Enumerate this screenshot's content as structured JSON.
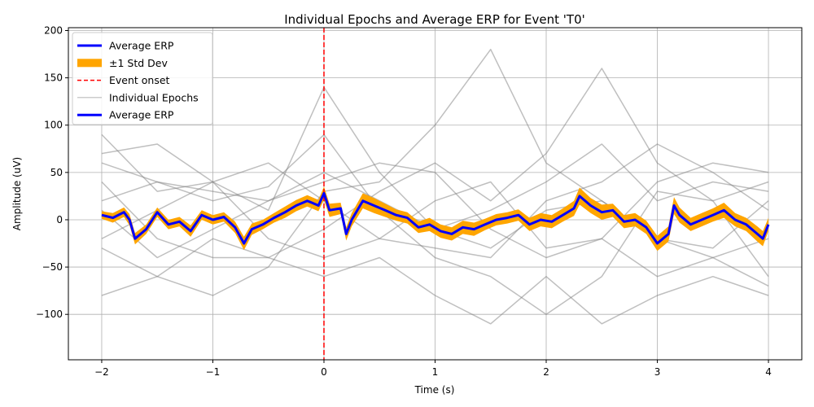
{
  "chart_data": {
    "type": "line",
    "title": "Individual Epochs and Average ERP for Event 'T0'",
    "xlabel": "Time (s)",
    "ylabel": "Amplitude (uV)",
    "xlim": [
      -2.3,
      4.3
    ],
    "ylim": [
      -148,
      203
    ],
    "xticks": [
      -2,
      -1,
      0,
      1,
      2,
      3,
      4
    ],
    "xtick_labels": [
      "−2",
      "−1",
      "0",
      "1",
      "2",
      "3",
      "4"
    ],
    "yticks": [
      -100,
      -50,
      0,
      50,
      100,
      150,
      200
    ],
    "ytick_labels": [
      "−100",
      "−50",
      "0",
      "50",
      "100",
      "150",
      "200"
    ],
    "grid": true,
    "legend_position": "top-left",
    "legend": [
      {
        "label": "Average ERP",
        "kind": "line",
        "color": "#0000ff"
      },
      {
        "label": "±1 Std Dev",
        "kind": "patch",
        "color": "#ffa500"
      },
      {
        "label": "Event onset",
        "kind": "dashed",
        "color": "#ff0000"
      },
      {
        "label": "Individual Epochs",
        "kind": "thin",
        "color": "#808080"
      },
      {
        "label": "Average ERP",
        "kind": "line",
        "color": "#0000ff"
      }
    ],
    "event_onset_x": 0,
    "epochs": {
      "color": "#808080",
      "x": [
        -2.0,
        -1.5,
        -1.0,
        -0.5,
        0.0,
        0.5,
        1.0,
        1.5,
        2.0,
        2.5,
        3.0,
        3.5,
        4.0
      ],
      "series": [
        {
          "values": [
            60,
            40,
            20,
            35,
            90,
            10,
            -40,
            -60,
            -100,
            -60,
            30,
            20,
            40
          ]
        },
        {
          "values": [
            -80,
            -60,
            -20,
            -40,
            -10,
            30,
            60,
            20,
            70,
            160,
            60,
            20,
            -60
          ]
        },
        {
          "values": [
            90,
            30,
            40,
            10,
            140,
            50,
            -10,
            -30,
            10,
            20,
            -20,
            -40,
            -20
          ]
        },
        {
          "values": [
            -30,
            -60,
            -80,
            -50,
            30,
            40,
            100,
            180,
            60,
            20,
            -20,
            -30,
            20
          ]
        },
        {
          "values": [
            20,
            40,
            30,
            20,
            40,
            60,
            50,
            -10,
            -40,
            -20,
            40,
            60,
            50
          ]
        },
        {
          "values": [
            40,
            -20,
            -40,
            -40,
            -60,
            -40,
            -80,
            -110,
            -60,
            -110,
            -80,
            -60,
            -80
          ]
        },
        {
          "values": [
            -20,
            10,
            40,
            60,
            20,
            -20,
            -30,
            -40,
            20,
            40,
            80,
            50,
            10
          ]
        },
        {
          "values": [
            10,
            -40,
            -10,
            20,
            50,
            20,
            -10,
            10,
            40,
            80,
            20,
            40,
            30
          ]
        },
        {
          "values": [
            70,
            80,
            40,
            -20,
            -40,
            -20,
            20,
            40,
            -30,
            -20,
            -60,
            -40,
            -70
          ]
        }
      ]
    },
    "average_erp": {
      "color": "#0000ff",
      "x": [
        -2.0,
        -1.9,
        -1.8,
        -1.75,
        -1.7,
        -1.6,
        -1.5,
        -1.4,
        -1.3,
        -1.2,
        -1.1,
        -1.0,
        -0.9,
        -0.8,
        -0.72,
        -0.65,
        -0.55,
        -0.45,
        -0.35,
        -0.25,
        -0.15,
        -0.05,
        0.0,
        0.05,
        0.15,
        0.2,
        0.25,
        0.35,
        0.45,
        0.55,
        0.65,
        0.75,
        0.85,
        0.95,
        1.05,
        1.15,
        1.25,
        1.35,
        1.45,
        1.55,
        1.65,
        1.75,
        1.85,
        1.95,
        2.05,
        2.15,
        2.25,
        2.3,
        2.4,
        2.5,
        2.6,
        2.7,
        2.8,
        2.9,
        3.0,
        3.05,
        3.1,
        3.15,
        3.2,
        3.3,
        3.4,
        3.5,
        3.6,
        3.7,
        3.8,
        3.9,
        3.95,
        4.0
      ],
      "values": [
        5,
        2,
        8,
        0,
        -20,
        -10,
        8,
        -5,
        -2,
        -12,
        5,
        0,
        3,
        -8,
        -25,
        -10,
        -5,
        2,
        8,
        15,
        20,
        15,
        28,
        10,
        12,
        -15,
        0,
        20,
        15,
        10,
        5,
        2,
        -8,
        -5,
        -12,
        -15,
        -8,
        -10,
        -5,
        0,
        2,
        5,
        -5,
        0,
        -2,
        5,
        12,
        25,
        15,
        8,
        10,
        -2,
        0,
        -8,
        -25,
        -20,
        -15,
        15,
        5,
        -5,
        0,
        5,
        10,
        0,
        -5,
        -15,
        -20,
        -5
      ],
      "std": [
        4,
        5,
        5,
        6,
        6,
        5,
        5,
        5,
        5,
        6,
        5,
        5,
        5,
        6,
        7,
        6,
        5,
        5,
        6,
        6,
        6,
        6,
        7,
        7,
        6,
        7,
        7,
        8,
        8,
        7,
        6,
        6,
        6,
        7,
        7,
        7,
        7,
        7,
        6,
        6,
        6,
        6,
        7,
        7,
        7,
        7,
        8,
        9,
        8,
        8,
        7,
        7,
        7,
        7,
        8,
        8,
        8,
        9,
        8,
        7,
        7,
        7,
        8,
        7,
        7,
        8,
        8,
        7
      ]
    },
    "std_band_color": "#ffa500"
  }
}
